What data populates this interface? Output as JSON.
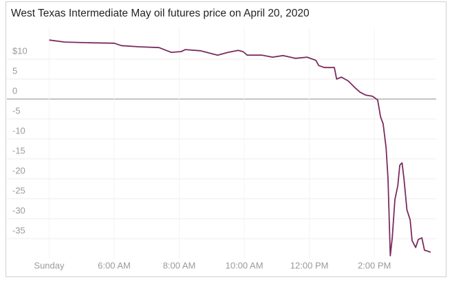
{
  "chart_data": {
    "type": "line",
    "title": "West Texas Intermediate May oil futures price on April 20, 2020",
    "color": "#7a2a5e",
    "grid": true,
    "xlim": [
      2.7,
      15.9
    ],
    "xticks": [
      {
        "value": 4,
        "label": "Sunday"
      },
      {
        "value": 6,
        "label": "6:00 AM"
      },
      {
        "value": 8,
        "label": "8:00 AM"
      },
      {
        "value": 10,
        "label": "10:00 AM"
      },
      {
        "value": 12,
        "label": "12:00 PM"
      },
      {
        "value": 14,
        "label": "2:00 PM"
      }
    ],
    "ylim": [
      -40,
      18
    ],
    "yticks": [
      {
        "value": 10,
        "label": "$10"
      },
      5,
      0,
      -5,
      -10,
      -15,
      -20,
      -25,
      -30,
      -35
    ],
    "x": [
      4.0,
      4.47,
      5.27,
      6.0,
      6.22,
      6.75,
      7.38,
      7.59,
      7.76,
      8.06,
      8.19,
      8.65,
      9.18,
      9.5,
      9.81,
      9.96,
      10.09,
      10.55,
      10.87,
      11.19,
      11.57,
      11.93,
      12.2,
      12.29,
      12.46,
      12.77,
      12.84,
      12.99,
      13.2,
      13.41,
      13.56,
      13.73,
      13.94,
      14.1,
      14.19,
      14.27,
      14.36,
      14.42,
      14.49,
      14.55,
      14.63,
      14.72,
      14.78,
      14.85,
      14.91,
      15.0,
      15.1,
      15.16,
      15.27,
      15.35,
      15.46,
      15.54,
      15.63,
      15.73
    ],
    "values": [
      14.8,
      14.3,
      14.1,
      14.0,
      13.4,
      13.1,
      12.9,
      12.2,
      11.7,
      11.9,
      12.4,
      12.1,
      11.0,
      11.7,
      12.2,
      11.9,
      11.0,
      11.0,
      10.5,
      10.9,
      10.2,
      10.5,
      9.7,
      8.4,
      7.9,
      7.9,
      5.0,
      5.5,
      4.5,
      2.8,
      1.7,
      1.0,
      0.7,
      -0.2,
      -4.5,
      -6.2,
      -12.2,
      -20.0,
      -39.3,
      -34.7,
      -25.2,
      -21.7,
      -16.6,
      -16.0,
      -20.0,
      -27.8,
      -30.3,
      -35.5,
      -37.2,
      -35.2,
      -34.8,
      -37.9,
      -38.1,
      -38.4
    ]
  }
}
